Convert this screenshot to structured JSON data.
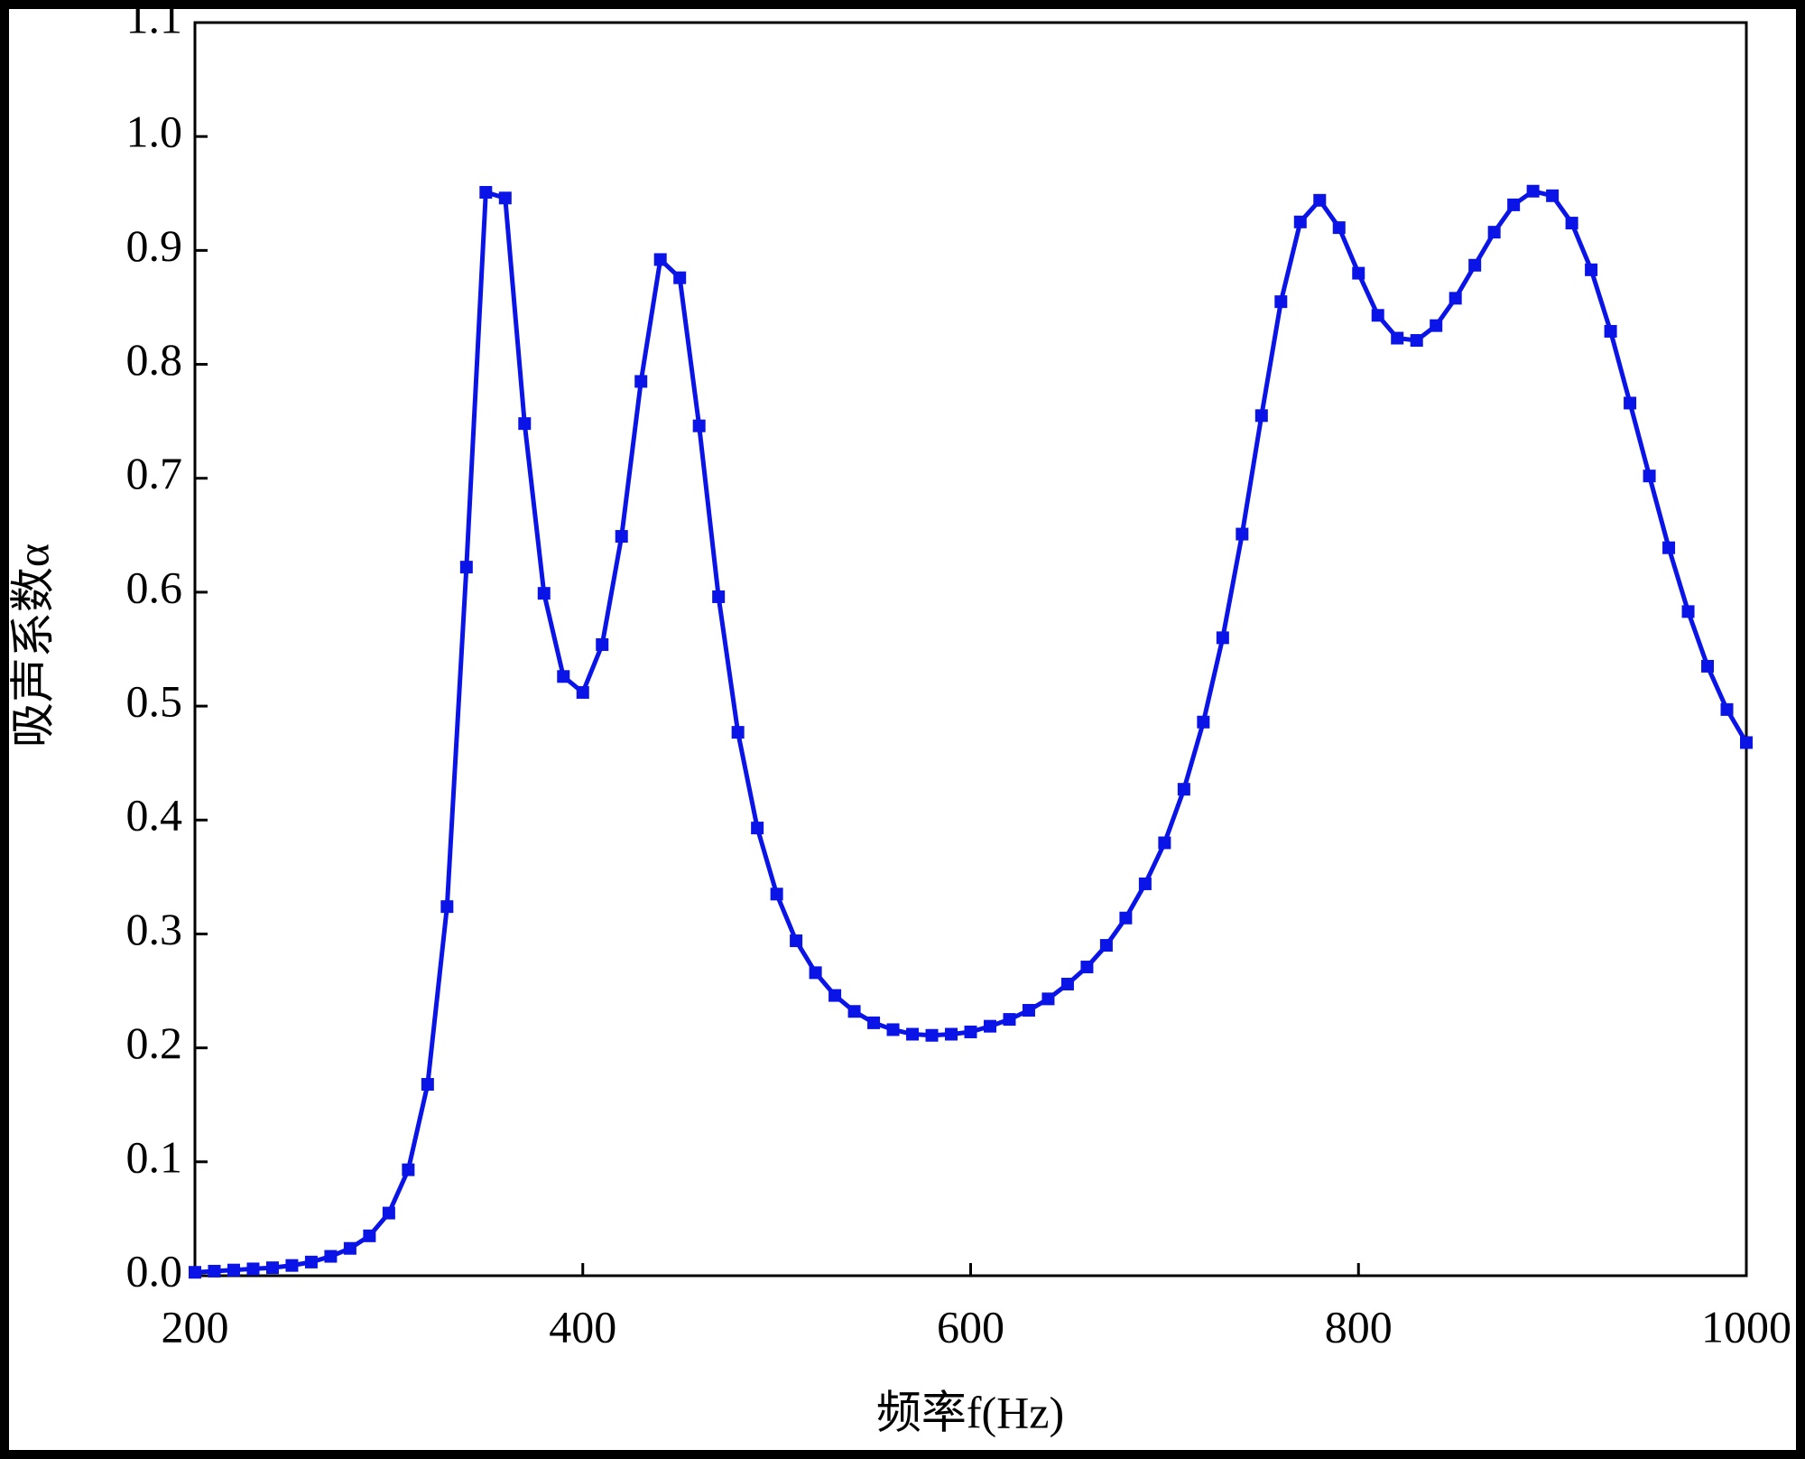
{
  "chart_data": {
    "type": "line",
    "x_label": "频率f(Hz)",
    "y_label": "吸声系数α",
    "x": [
      200,
      210,
      220,
      230,
      240,
      250,
      260,
      270,
      280,
      290,
      300,
      310,
      320,
      330,
      340,
      350,
      360,
      370,
      380,
      390,
      400,
      410,
      420,
      430,
      440,
      450,
      460,
      470,
      480,
      490,
      500,
      510,
      520,
      530,
      540,
      550,
      560,
      570,
      580,
      590,
      600,
      610,
      620,
      630,
      640,
      650,
      660,
      670,
      680,
      690,
      700,
      710,
      720,
      730,
      740,
      750,
      760,
      770,
      780,
      790,
      800,
      810,
      820,
      830,
      840,
      850,
      860,
      870,
      880,
      890,
      900,
      910,
      920,
      930,
      940,
      950,
      960,
      970,
      980,
      990,
      1000
    ],
    "series": [
      {
        "color": "#0a14e6",
        "values": [
          0.003,
          0.004,
          0.005,
          0.006,
          0.007,
          0.009,
          0.012,
          0.017,
          0.024,
          0.035,
          0.055,
          0.093,
          0.168,
          0.324,
          0.622,
          0.951,
          0.946,
          0.748,
          0.599,
          0.526,
          0.512,
          0.554,
          0.649,
          0.785,
          0.892,
          0.876,
          0.746,
          0.596,
          0.477,
          0.393,
          0.335,
          0.294,
          0.266,
          0.246,
          0.232,
          0.222,
          0.216,
          0.212,
          0.211,
          0.212,
          0.214,
          0.219,
          0.225,
          0.233,
          0.243,
          0.256,
          0.271,
          0.29,
          0.314,
          0.344,
          0.38,
          0.427,
          0.486,
          0.56,
          0.651,
          0.755,
          0.855,
          0.925,
          0.944,
          0.92,
          0.88,
          0.843,
          0.823,
          0.821,
          0.834,
          0.858,
          0.887,
          0.916,
          0.94,
          0.952,
          0.948,
          0.924,
          0.883,
          0.829,
          0.766,
          0.702,
          0.639,
          0.583,
          0.535,
          0.497,
          0.468
        ]
      }
    ],
    "xlim": [
      200,
      1000
    ],
    "xticks": [
      200,
      400,
      600,
      800,
      1000
    ],
    "ylim": [
      0,
      1.1
    ],
    "yticks": [
      {
        "value": 0,
        "label": "0.0"
      },
      0.1,
      0.2,
      0.3,
      0.4,
      0.5,
      0.6,
      0.7,
      0.8,
      0.9,
      {
        "value": 1,
        "label": "1.0"
      },
      1.1
    ]
  }
}
